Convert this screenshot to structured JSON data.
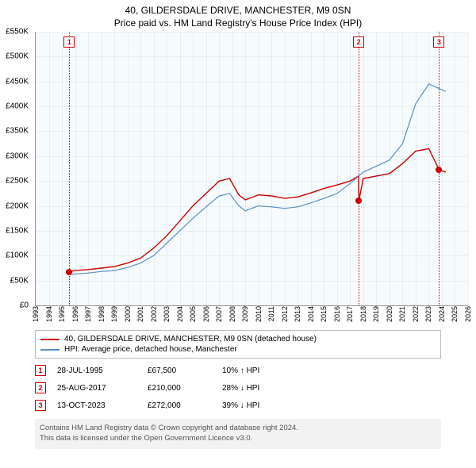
{
  "title": "40, GILDERSDALE DRIVE, MANCHESTER, M9 0SN",
  "subtitle": "Price paid vs. HM Land Registry's House Price Index (HPI)",
  "chart": {
    "type": "line",
    "background_color": "#ffffff",
    "plot_bg": "#f6fbfd",
    "grid_color": "rgba(0,0,0,0.05)",
    "x_axis": {
      "min": 1993,
      "max": 2026,
      "ticks": [
        1993,
        1994,
        1995,
        1996,
        1997,
        1998,
        1999,
        2000,
        2001,
        2002,
        2003,
        2004,
        2005,
        2006,
        2007,
        2008,
        2009,
        2010,
        2011,
        2012,
        2013,
        2014,
        2015,
        2016,
        2017,
        2018,
        2019,
        2020,
        2021,
        2022,
        2023,
        2024,
        2025,
        2026
      ],
      "tick_fontsize": 9
    },
    "y_axis": {
      "min": 0,
      "max": 550000,
      "ticks": [
        0,
        50000,
        100000,
        150000,
        200000,
        250000,
        300000,
        350000,
        400000,
        450000,
        500000,
        550000
      ],
      "tick_labels": [
        "£0",
        "£50K",
        "£100K",
        "£150K",
        "£200K",
        "£250K",
        "£300K",
        "£350K",
        "£400K",
        "£450K",
        "£500K",
        "£550K"
      ],
      "tick_fontsize": 10
    },
    "series": [
      {
        "name": "40, GILDERSDALE DRIVE, MANCHESTER, M9 0SN (detached house)",
        "color": "#cc0000",
        "line_width": 1.4,
        "x": [
          1995.5,
          1996,
          1997,
          1998,
          1999,
          2000,
          2001,
          2002,
          2003,
          2004,
          2005,
          2006,
          2007,
          2007.8,
          2008.5,
          2009,
          2010,
          2011,
          2012,
          2013,
          2014,
          2015,
          2016,
          2017,
          2017.65,
          2017.66,
          2018,
          2019,
          2020,
          2021,
          2022,
          2023,
          2023.8,
          2024.3
        ],
        "y": [
          67500,
          70000,
          72000,
          75000,
          78000,
          85000,
          95000,
          115000,
          140000,
          170000,
          200000,
          225000,
          250000,
          255000,
          222000,
          212000,
          222000,
          220000,
          215000,
          218000,
          226000,
          235000,
          242000,
          250000,
          260000,
          210000,
          255000,
          260000,
          265000,
          285000,
          310000,
          315000,
          272000,
          268000
        ]
      },
      {
        "name": "HPI: Average price, detached house, Manchester",
        "color": "#5b8fc7",
        "line_width": 1.2,
        "x": [
          1995.5,
          1996,
          1997,
          1998,
          1999,
          2000,
          2001,
          2002,
          2003,
          2004,
          2005,
          2006,
          2007,
          2007.8,
          2008.5,
          2009,
          2010,
          2011,
          2012,
          2013,
          2014,
          2015,
          2016,
          2017,
          2018,
          2019,
          2020,
          2021,
          2022,
          2023,
          2024.3
        ],
        "y": [
          62000,
          63000,
          65000,
          68000,
          70000,
          76000,
          85000,
          100000,
          125000,
          150000,
          175000,
          198000,
          220000,
          225000,
          200000,
          190000,
          200000,
          198000,
          195000,
          198000,
          206000,
          215000,
          225000,
          245000,
          268000,
          280000,
          292000,
          325000,
          405000,
          445000,
          430000
        ]
      }
    ],
    "markers": [
      {
        "n": 1,
        "x": 1995.57,
        "y": 67500,
        "dot_color": "#cc0000"
      },
      {
        "n": 2,
        "x": 2017.65,
        "y": 210000,
        "dot_color": "#cc0000"
      },
      {
        "n": 3,
        "x": 2023.78,
        "y": 272000,
        "dot_color": "#cc0000"
      }
    ],
    "marker_line_color": "#cc0000",
    "marker_box_border": "#cc0000"
  },
  "legend": {
    "items": [
      {
        "label": "40, GILDERSDALE DRIVE, MANCHESTER, M9 0SN (detached house)",
        "color": "#cc0000"
      },
      {
        "label": "HPI: Average price, detached house, Manchester",
        "color": "#5b8fc7"
      }
    ]
  },
  "events": [
    {
      "n": "1",
      "date": "28-JUL-1995",
      "price": "£67,500",
      "delta": "10% ↑ HPI"
    },
    {
      "n": "2",
      "date": "25-AUG-2017",
      "price": "£210,000",
      "delta": "28% ↓ HPI"
    },
    {
      "n": "3",
      "date": "13-OCT-2023",
      "price": "£272,000",
      "delta": "39% ↓ HPI"
    }
  ],
  "footer": {
    "line1": "Contains HM Land Registry data © Crown copyright and database right 2024.",
    "line2": "This data is licensed under the Open Government Licence v3.0."
  }
}
